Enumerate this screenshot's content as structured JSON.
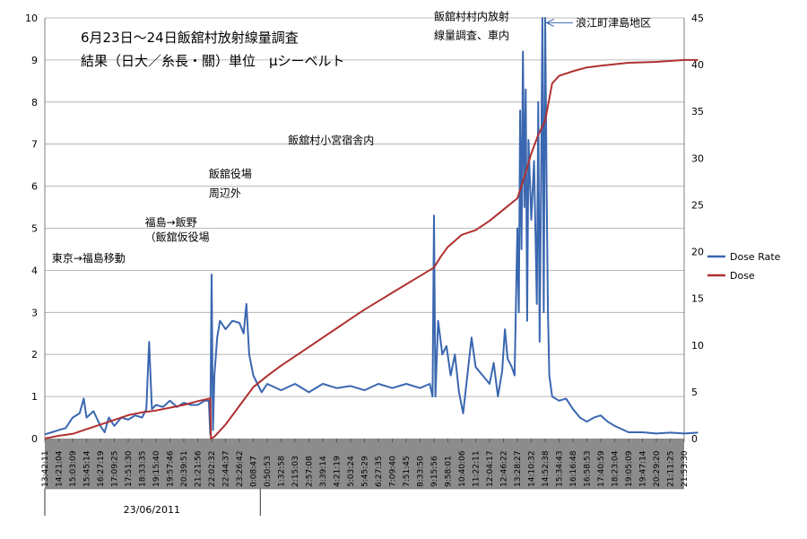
{
  "chart_data": {
    "type": "line",
    "title_lines": [
      "6月23日～24日飯舘村放射線量調査",
      "結果（日大／糸長・關）単位　μシーベルト"
    ],
    "y_left": {
      "ylim": [
        0,
        10
      ],
      "ticks": [
        "0",
        "1",
        "2",
        "3",
        "4",
        "5",
        "6",
        "7",
        "8",
        "9",
        "10"
      ]
    },
    "y_right": {
      "ylim": [
        0,
        45
      ],
      "ticks": [
        "0",
        "5",
        "10",
        "15",
        "20",
        "25",
        "30",
        "35",
        "40",
        "45"
      ]
    },
    "x_tick_labels": [
      "13:42:11",
      "14:21:04",
      "15:03:09",
      "15:45:14",
      "16:27:19",
      "17:09:25",
      "17:51:30",
      "18:33:35",
      "19:15:40",
      "19:57:46",
      "20:39:51",
      "21:21:56",
      "22:02:32",
      "22:44:37",
      "23:26:42",
      "0:08:47",
      "0:50:53",
      "1:32:58",
      "2:15:03",
      "2:57:08",
      "3:39:14",
      "4:21:19",
      "5:03:24",
      "5:45:29",
      "6:27:35",
      "7:09:40",
      "7:51:45",
      "8:33:50",
      "9:15:56",
      "9:58:01",
      "10:40:06",
      "11:22:11",
      "12:04:17",
      "12:46:22",
      "13:28:27",
      "14:10:32",
      "14:52:38",
      "15:34:43",
      "16:16:48",
      "16:58:53",
      "17:40:59",
      "18:23:04",
      "19:05:09",
      "19:47:14",
      "20:29:20",
      "21:11:25",
      "21:53:30"
    ],
    "date_label": "23/06/2011",
    "grid": true,
    "legend_position": "right",
    "series": [
      {
        "name": "Dose Rate",
        "axis": "left",
        "color": "#3a67b0",
        "points": [
          [
            0,
            0.1
          ],
          [
            0.5,
            0.15
          ],
          [
            1,
            0.2
          ],
          [
            1.5,
            0.25
          ],
          [
            2,
            0.5
          ],
          [
            2.5,
            0.6
          ],
          [
            2.8,
            0.95
          ],
          [
            3,
            0.5
          ],
          [
            3.5,
            0.65
          ],
          [
            4,
            0.3
          ],
          [
            4.3,
            0.15
          ],
          [
            4.6,
            0.5
          ],
          [
            5,
            0.3
          ],
          [
            5.5,
            0.5
          ],
          [
            6,
            0.45
          ],
          [
            6.5,
            0.55
          ],
          [
            7,
            0.5
          ],
          [
            7.3,
            0.7
          ],
          [
            7.5,
            2.3
          ],
          [
            7.7,
            0.7
          ],
          [
            8,
            0.8
          ],
          [
            8.5,
            0.75
          ],
          [
            9,
            0.9
          ],
          [
            9.5,
            0.75
          ],
          [
            10,
            0.85
          ],
          [
            10.5,
            0.8
          ],
          [
            11,
            0.8
          ],
          [
            11.5,
            0.9
          ],
          [
            11.8,
            0.9
          ],
          [
            11.9,
            0.1
          ],
          [
            12.0,
            3.9
          ],
          [
            12.1,
            0.2
          ],
          [
            12.2,
            1.5
          ],
          [
            12.4,
            2.4
          ],
          [
            12.6,
            2.8
          ],
          [
            13,
            2.6
          ],
          [
            13.5,
            2.8
          ],
          [
            14,
            2.75
          ],
          [
            14.3,
            2.5
          ],
          [
            14.5,
            3.2
          ],
          [
            14.7,
            2.0
          ],
          [
            15,
            1.5
          ],
          [
            15.3,
            1.3
          ],
          [
            15.6,
            1.1
          ],
          [
            16,
            1.3
          ],
          [
            17,
            1.15
          ],
          [
            18,
            1.3
          ],
          [
            19,
            1.1
          ],
          [
            20,
            1.3
          ],
          [
            21,
            1.2
          ],
          [
            22,
            1.25
          ],
          [
            23,
            1.15
          ],
          [
            24,
            1.3
          ],
          [
            25,
            1.2
          ],
          [
            26,
            1.3
          ],
          [
            27,
            1.2
          ],
          [
            27.7,
            1.3
          ],
          [
            27.9,
            1.0
          ],
          [
            28.0,
            5.3
          ],
          [
            28.1,
            1.0
          ],
          [
            28.3,
            2.8
          ],
          [
            28.6,
            2.0
          ],
          [
            28.9,
            2.2
          ],
          [
            29.2,
            1.5
          ],
          [
            29.5,
            2.0
          ],
          [
            29.8,
            1.1
          ],
          [
            30.1,
            0.6
          ],
          [
            30.4,
            1.5
          ],
          [
            30.7,
            2.4
          ],
          [
            31,
            1.7
          ],
          [
            31.5,
            1.5
          ],
          [
            32,
            1.3
          ],
          [
            32.3,
            1.8
          ],
          [
            32.6,
            1.0
          ],
          [
            32.9,
            1.6
          ],
          [
            33.1,
            2.6
          ],
          [
            33.3,
            1.9
          ],
          [
            33.6,
            1.7
          ],
          [
            33.8,
            1.5
          ],
          [
            34.0,
            5.0
          ],
          [
            34.1,
            3.0
          ],
          [
            34.2,
            7.8
          ],
          [
            34.3,
            4.5
          ],
          [
            34.4,
            9.2
          ],
          [
            34.5,
            5.5
          ],
          [
            34.6,
            8.3
          ],
          [
            34.7,
            2.8
          ],
          [
            34.8,
            7.1
          ],
          [
            35.0,
            5.2
          ],
          [
            35.2,
            6.6
          ],
          [
            35.4,
            3.2
          ],
          [
            35.5,
            8.0
          ],
          [
            35.6,
            2.3
          ],
          [
            35.7,
            6.0
          ],
          [
            35.8,
            10.0
          ],
          [
            35.9,
            3.0
          ],
          [
            36.0,
            10.0
          ],
          [
            36.1,
            6.0
          ],
          [
            36.2,
            3.0
          ],
          [
            36.3,
            1.5
          ],
          [
            36.5,
            1.0
          ],
          [
            37,
            0.9
          ],
          [
            37.5,
            0.95
          ],
          [
            38,
            0.7
          ],
          [
            38.5,
            0.5
          ],
          [
            39,
            0.4
          ],
          [
            39.5,
            0.5
          ],
          [
            40,
            0.55
          ],
          [
            40.5,
            0.4
          ],
          [
            41,
            0.3
          ],
          [
            42,
            0.15
          ],
          [
            43,
            0.15
          ],
          [
            44,
            0.12
          ],
          [
            45,
            0.14
          ],
          [
            46,
            0.12
          ],
          [
            47,
            0.14
          ]
        ]
      },
      {
        "name": "Dose",
        "axis": "right",
        "color": "#b03030",
        "points": [
          [
            0,
            0
          ],
          [
            1,
            0.3
          ],
          [
            2,
            0.5
          ],
          [
            3,
            1.0
          ],
          [
            4,
            1.5
          ],
          [
            5,
            2.0
          ],
          [
            6,
            2.5
          ],
          [
            7,
            2.8
          ],
          [
            8,
            3.0
          ],
          [
            9,
            3.3
          ],
          [
            10,
            3.6
          ],
          [
            11,
            4.0
          ],
          [
            11.9,
            4.3
          ],
          [
            11.95,
            0
          ],
          [
            12.2,
            0.2
          ],
          [
            13,
            1.5
          ],
          [
            14,
            3.5
          ],
          [
            15,
            5.5
          ],
          [
            16,
            6.7
          ],
          [
            17,
            7.8
          ],
          [
            18,
            8.8
          ],
          [
            19,
            9.8
          ],
          [
            20,
            10.8
          ],
          [
            21,
            11.8
          ],
          [
            22,
            12.8
          ],
          [
            23,
            13.8
          ],
          [
            24,
            14.7
          ],
          [
            25,
            15.6
          ],
          [
            26,
            16.5
          ],
          [
            27,
            17.4
          ],
          [
            28,
            18.3
          ],
          [
            28.5,
            19.5
          ],
          [
            29,
            20.5
          ],
          [
            30,
            21.8
          ],
          [
            31,
            22.3
          ],
          [
            32,
            23.3
          ],
          [
            33,
            24.5
          ],
          [
            34,
            25.7
          ],
          [
            34.5,
            28
          ],
          [
            35,
            30.5
          ],
          [
            35.5,
            32.5
          ],
          [
            36,
            34.0
          ],
          [
            36.5,
            38
          ],
          [
            37,
            38.8
          ],
          [
            38,
            39.3
          ],
          [
            39,
            39.7
          ],
          [
            40,
            39.9
          ],
          [
            42,
            40.2
          ],
          [
            44,
            40.3
          ],
          [
            46,
            40.5
          ],
          [
            47,
            40.5
          ]
        ]
      }
    ],
    "legend": [
      "Dose Rate",
      "Dose"
    ],
    "annotations": [
      {
        "name": "ann-tokyo",
        "text": "東京→福島移動",
        "x_tick": 0.5,
        "y_left": 4.2
      },
      {
        "name": "ann-fukushima-1",
        "text": "福島→飯野",
        "x_tick": 7.2,
        "y_left": 5.05
      },
      {
        "name": "ann-fukushima-2",
        "text": "（飯舘仮役場",
        "x_tick": 7.2,
        "y_left": 4.7
      },
      {
        "name": "ann-iitate-1",
        "text": "飯舘役場",
        "x_tick": 11.8,
        "y_left": 6.2
      },
      {
        "name": "ann-iitate-2",
        "text": "周辺外",
        "x_tick": 11.8,
        "y_left": 5.75
      },
      {
        "name": "ann-komiya",
        "text": "飯舘村小宮宿舎内",
        "x_tick": 17.5,
        "y_left": 7.0
      },
      {
        "name": "ann-village-1",
        "text": "飯舘村村内放射",
        "x_tick": 28.0,
        "y_left": 9.95
      },
      {
        "name": "ann-village-2",
        "text": "線量調査、車内",
        "x_tick": 28.0,
        "y_left": 9.5
      },
      {
        "name": "ann-namie",
        "text": "浪江町津島地区",
        "x_tick": 38.2,
        "y_left": 9.8
      }
    ]
  }
}
